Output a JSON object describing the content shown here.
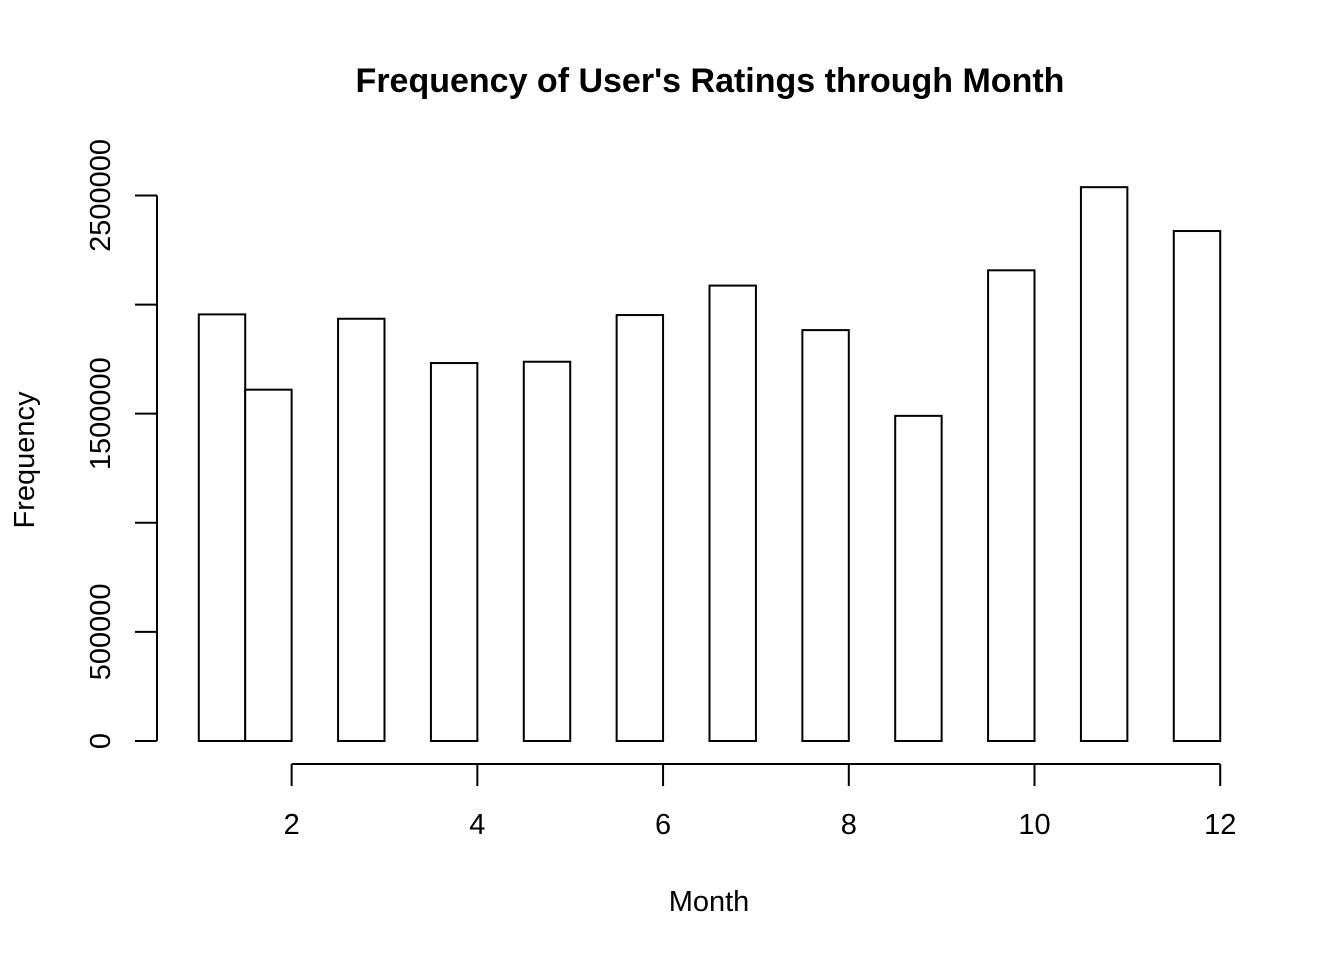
{
  "chart_data": {
    "type": "bar",
    "title": "Frequency of User's Ratings through Month",
    "xlabel": "Month",
    "ylabel": "Frequency",
    "bins": [
      {
        "start": 1.0,
        "end": 1.5,
        "value": 1955000
      },
      {
        "start": 1.5,
        "end": 2.0,
        "value": 1610000
      },
      {
        "start": 2.5,
        "end": 3.0,
        "value": 1935000
      },
      {
        "start": 3.5,
        "end": 4.0,
        "value": 1732000
      },
      {
        "start": 4.5,
        "end": 5.0,
        "value": 1738000
      },
      {
        "start": 5.5,
        "end": 6.0,
        "value": 1952000
      },
      {
        "start": 6.5,
        "end": 7.0,
        "value": 2087000
      },
      {
        "start": 7.5,
        "end": 8.0,
        "value": 1883000
      },
      {
        "start": 8.5,
        "end": 9.0,
        "value": 1490000
      },
      {
        "start": 9.5,
        "end": 10.0,
        "value": 2157000
      },
      {
        "start": 10.5,
        "end": 11.0,
        "value": 2538000
      },
      {
        "start": 11.5,
        "end": 12.0,
        "value": 2337000
      }
    ],
    "xlim": [
      0.55,
      12.45
    ],
    "ylim": [
      0,
      2800000
    ],
    "x_ticks": [
      2,
      4,
      6,
      8,
      10,
      12
    ],
    "x_tick_labels": [
      "2",
      "4",
      "6",
      "8",
      "10",
      "12"
    ],
    "y_ticks": [
      0,
      500000,
      1000000,
      1500000,
      2000000,
      2500000
    ],
    "y_tick_labels": [
      "0",
      "500000",
      "",
      "1500000",
      "",
      "2500000"
    ],
    "grid": false,
    "legend": "none"
  }
}
